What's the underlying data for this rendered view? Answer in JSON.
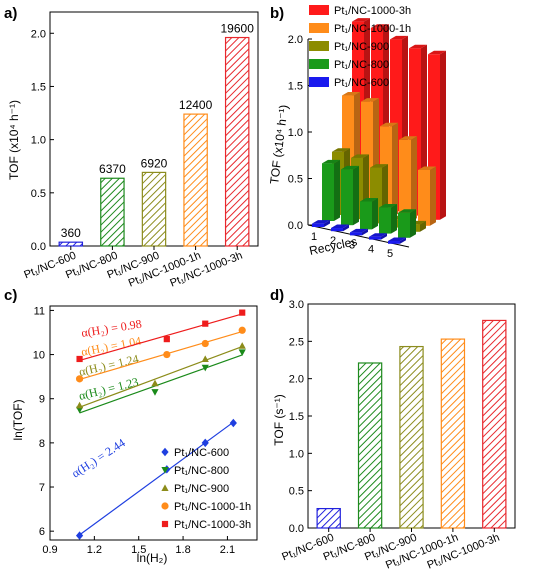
{
  "chart_data": [
    {
      "panel": "a)",
      "type": "bar",
      "ylabel": "TOF (x10⁴ h⁻¹)",
      "ylim": [
        0,
        2.2
      ],
      "yticks": [
        "0.0",
        "0.5",
        "1.0",
        "1.5",
        "2.0"
      ],
      "categories": [
        "Pt₁/NC-600",
        "Pt₁/NC-800",
        "Pt₁/NC-900",
        "Pt₁/NC-1000-1h",
        "Pt₁/NC-1000-3h"
      ],
      "values": [
        0.036,
        0.637,
        0.692,
        1.24,
        1.96
      ],
      "data_labels": [
        "360",
        "6370",
        "6920",
        "12400",
        "19600"
      ],
      "colors": [
        "#2222dd",
        "#1e8a1e",
        "#8c8c1e",
        "#ff8c1a",
        "#e8282d"
      ],
      "style": "hatched"
    },
    {
      "panel": "b)",
      "type": "bar",
      "ylabel": "TOF (x10⁴ h⁻¹)",
      "xlabel": "Recycles",
      "ylim": [
        0,
        2.0
      ],
      "yticks": [
        "0.0",
        "0.5",
        "1.0",
        "1.5",
        "2.0"
      ],
      "recycle_ticks": [
        "1",
        "2",
        "3",
        "4",
        "5"
      ],
      "legend": [
        "Pt₁/NC-1000-3h",
        "Pt₁/NC-1000-1h",
        "Pt₁/NC-900",
        "Pt₁/NC-800",
        "Pt₁/NC-600"
      ],
      "legend_colors": [
        "#ff1a1a",
        "#ff8c1a",
        "#8c8c00",
        "#1a9a1a",
        "#1a1aee"
      ],
      "series": [
        {
          "name": "Pt₁/NC-600",
          "values": [
            0.036,
            0.034,
            0.033,
            0.031,
            0.03
          ]
        },
        {
          "name": "Pt₁/NC-800",
          "values": [
            0.62,
            0.6,
            0.3,
            0.28,
            0.27
          ]
        },
        {
          "name": "Pt₁/NC-900",
          "values": [
            0.68,
            0.66,
            0.6,
            0.09,
            0.08
          ]
        },
        {
          "name": "Pt₁/NC-1000-1h",
          "values": [
            1.22,
            1.2,
            0.98,
            0.88,
            0.6
          ]
        },
        {
          "name": "Pt₁/NC-1000-3h",
          "values": [
            1.95,
            1.93,
            1.85,
            1.8,
            1.78
          ]
        }
      ]
    },
    {
      "panel": "c)",
      "type": "scatter",
      "xlabel": "ln(H₂)",
      "ylabel": "ln(TOF)",
      "xlim": [
        0.9,
        2.3
      ],
      "ylim": [
        5.8,
        11.1
      ],
      "xticks": [
        "0.9",
        "1.2",
        "1.5",
        "1.8",
        "2.1"
      ],
      "yticks": [
        "6",
        "7",
        "8",
        "9",
        "10",
        "11"
      ],
      "series": [
        {
          "name": "Pt₁/NC-600",
          "color": "#1f3fe0",
          "marker": "diamond",
          "x": [
            1.1,
            1.69,
            1.95,
            2.14
          ],
          "y": [
            5.9,
            7.4,
            8.0,
            8.45
          ],
          "slope_label": "α(H₂) = 2.44"
        },
        {
          "name": "Pt₁/NC-800",
          "color": "#1a8a1a",
          "marker": "triangle-down",
          "x": [
            1.1,
            1.61,
            1.95,
            2.2
          ],
          "y": [
            8.75,
            9.15,
            9.7,
            10.05
          ],
          "slope_label": "α(H₂) = 1.23"
        },
        {
          "name": "Pt₁/NC-900",
          "color": "#8c8c1a",
          "marker": "triangle-up",
          "x": [
            1.1,
            1.61,
            1.95,
            2.2
          ],
          "y": [
            8.85,
            9.35,
            9.9,
            10.2
          ],
          "slope_label": "α(H₂) = 1.24"
        },
        {
          "name": "Pt₁/NC-1000-1h",
          "color": "#ff8c1a",
          "marker": "circle",
          "x": [
            1.1,
            1.69,
            1.95,
            2.2
          ],
          "y": [
            9.45,
            10.0,
            10.25,
            10.55
          ],
          "slope_label": "α(H₂) = 1.04"
        },
        {
          "name": "Pt₁/NC-1000-3h",
          "color": "#ee1c1c",
          "marker": "square",
          "x": [
            1.1,
            1.69,
            1.95,
            2.2
          ],
          "y": [
            9.9,
            10.35,
            10.7,
            10.95
          ],
          "slope_label": "α(H₂) = 0.98"
        }
      ]
    },
    {
      "panel": "d)",
      "type": "bar",
      "ylabel": "TOF (s⁻¹)",
      "ylim": [
        0,
        3.0
      ],
      "yticks": [
        "0.0",
        "0.5",
        "1.0",
        "1.5",
        "2.0",
        "2.5",
        "3.0"
      ],
      "categories": [
        "Pt₁/NC-600",
        "Pt₁/NC-800",
        "Pt₁/NC-900",
        "Pt₁/NC-1000-1h",
        "Pt₁/NC-1000-3h"
      ],
      "values": [
        0.26,
        2.21,
        2.43,
        2.53,
        2.78
      ],
      "colors": [
        "#2222dd",
        "#1e8a1e",
        "#8c8c1e",
        "#ff8c1a",
        "#e8282d"
      ],
      "style": "hatched"
    }
  ]
}
